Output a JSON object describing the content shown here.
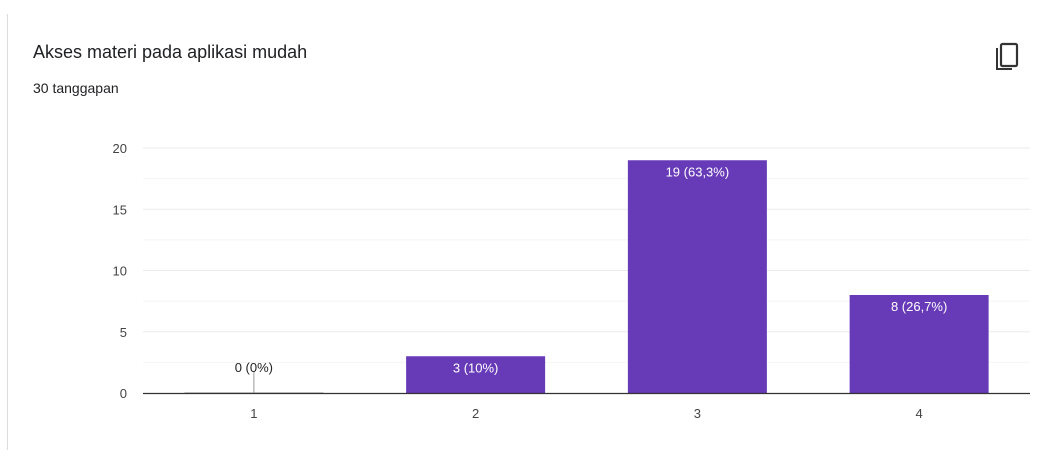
{
  "card": {
    "title": "Akses materi pada aplikasi mudah",
    "response_count": "30 tanggapan",
    "copy_icon": "copy-icon"
  },
  "colors": {
    "bar": "#673ab7",
    "grid": "#ebebeb",
    "baseline": "#333333",
    "label_inside": "#ffffff",
    "label_outside": "#222222"
  },
  "chart_data": {
    "type": "bar",
    "categories": [
      "1",
      "2",
      "3",
      "4"
    ],
    "values": [
      0,
      3,
      19,
      8
    ],
    "data_labels": [
      "0 (0%)",
      "3 (10%)",
      "19 (63,3%)",
      "8 (26,7%)"
    ],
    "ylim": [
      0,
      20
    ],
    "yticks": [
      0,
      5,
      10,
      15,
      20
    ],
    "grid": true,
    "title": "Akses materi pada aplikasi mudah",
    "xlabel": "",
    "ylabel": ""
  }
}
